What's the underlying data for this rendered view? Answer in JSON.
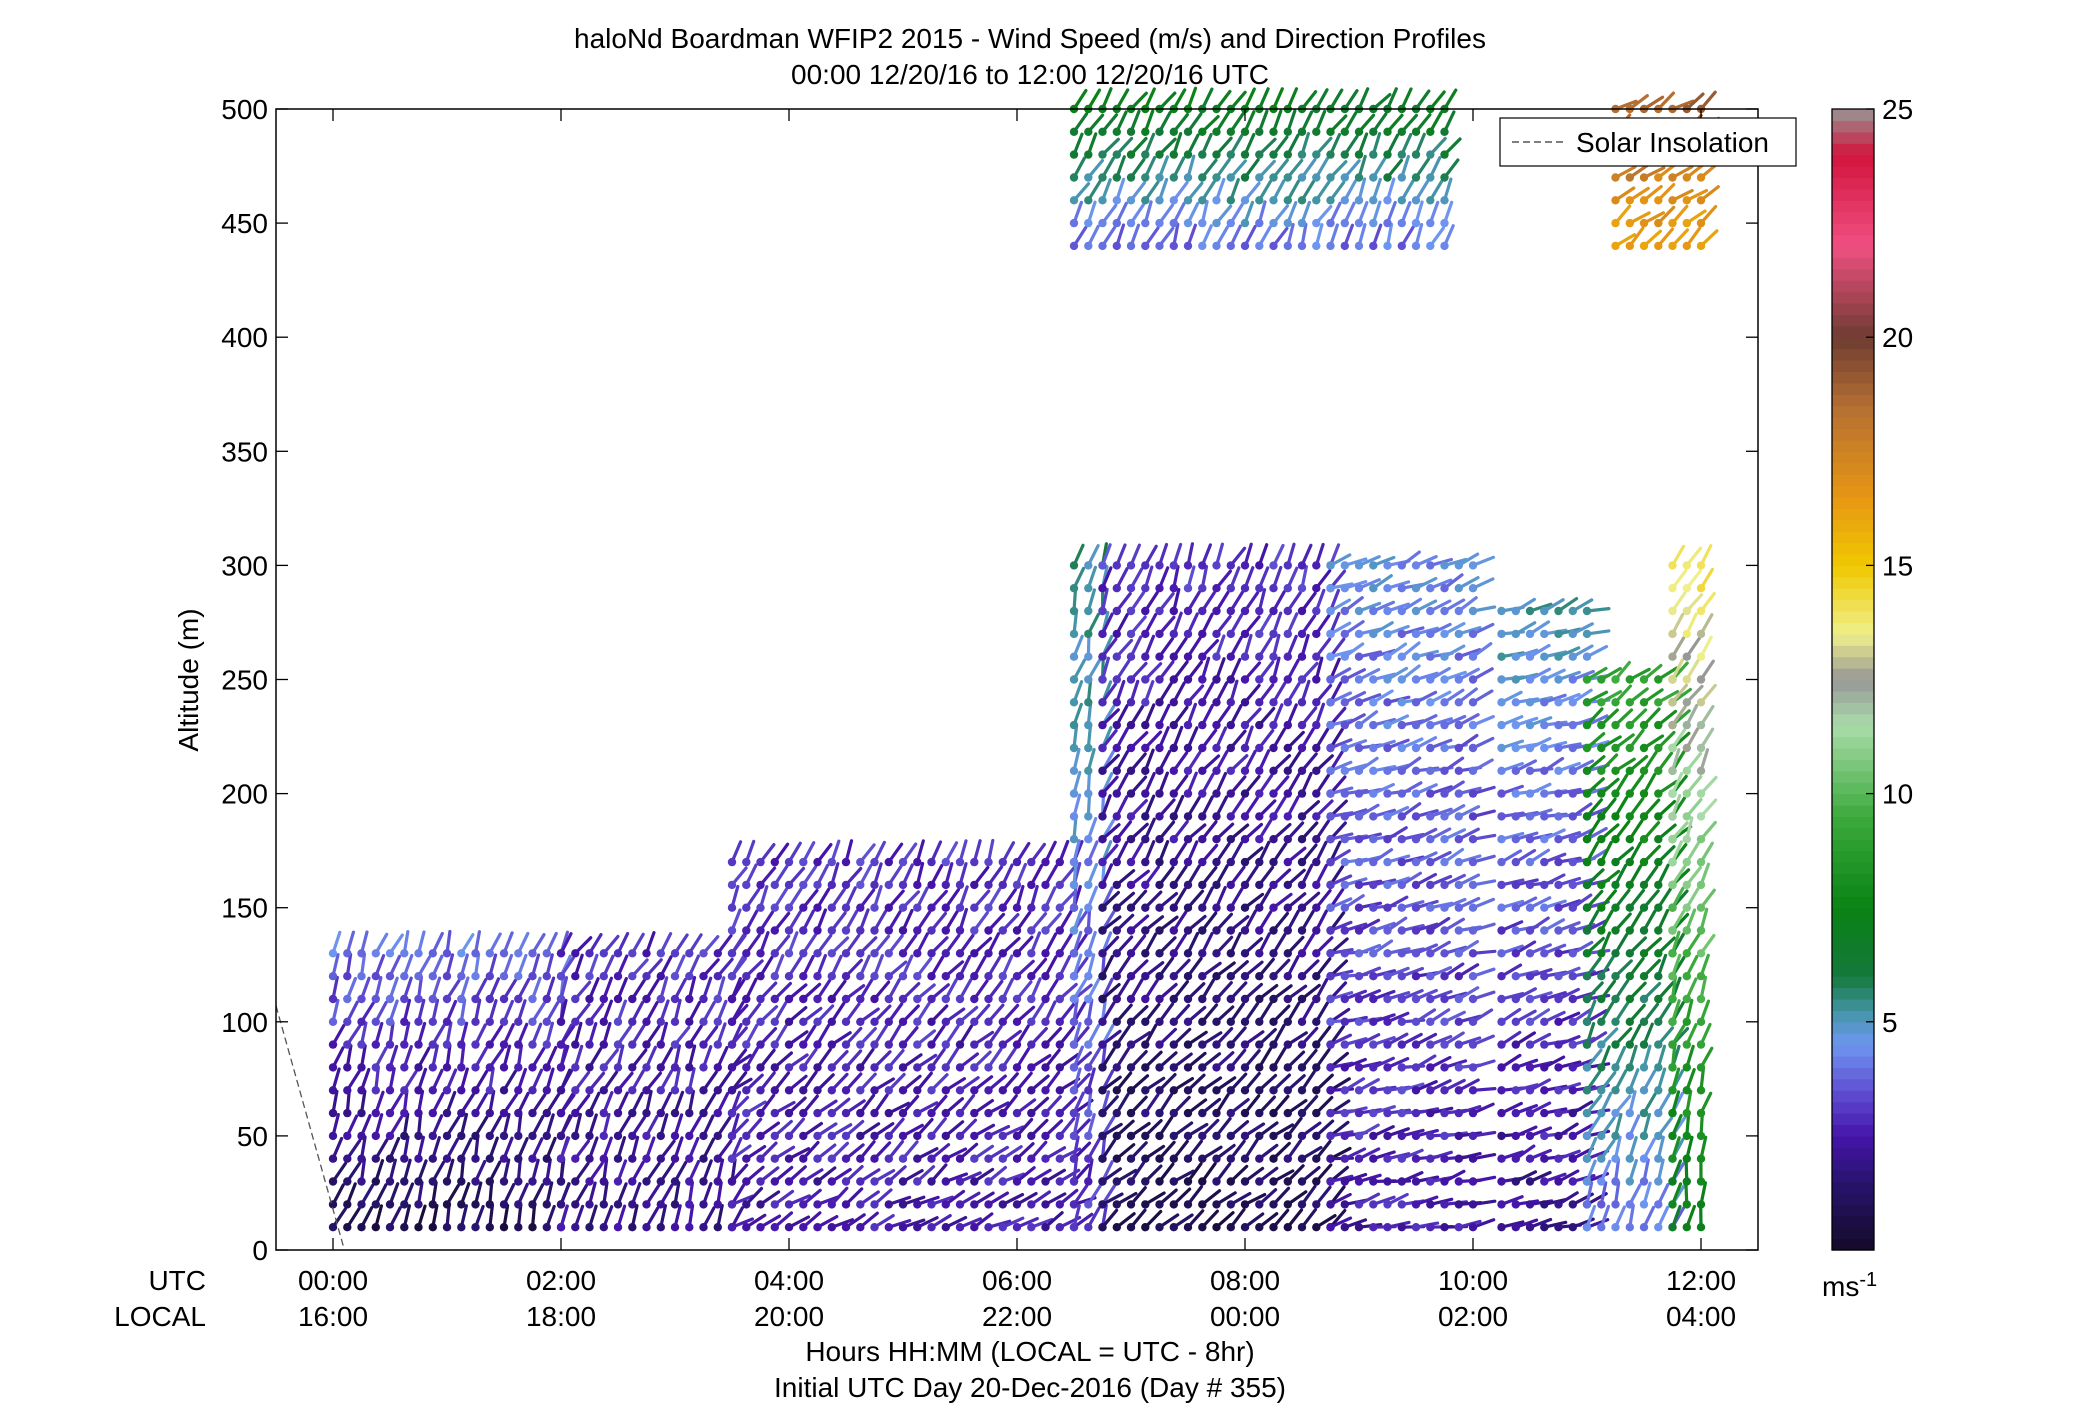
{
  "chart_data": {
    "type": "scatter",
    "title": "haloNd Boardman WFIP2 2015 - Wind Speed (m/s) and Direction Profiles",
    "subtitle": "00:00 12/20/16 to 12:00 12/20/16  UTC",
    "xlabel": "Hours HH:MM  (LOCAL = UTC - 8hr)",
    "xlabel2": "Initial UTC Day 20-Dec-2016 (Day # 355)",
    "ylabel": "Altitude (m)",
    "ylim": [
      0,
      500
    ],
    "xlim": [
      -0.5,
      12.5
    ],
    "yticks": [
      "0",
      "50",
      "100",
      "150",
      "200",
      "250",
      "300",
      "350",
      "400",
      "450",
      "500"
    ],
    "xticks_utc": [
      "00:00",
      "02:00",
      "04:00",
      "06:00",
      "08:00",
      "10:00",
      "12:00"
    ],
    "xticks_local": [
      "16:00",
      "18:00",
      "20:00",
      "22:00",
      "00:00",
      "02:00",
      "04:00"
    ],
    "row_label_utc": "UTC",
    "row_label_local": "LOCAL",
    "legend": [
      "Solar Insolation"
    ],
    "legend_position": "top-right",
    "colorbar": {
      "ticks": [
        "5",
        "10",
        "15",
        "20",
        "25"
      ],
      "range": [
        0,
        25
      ],
      "unit_label": "ms",
      "unit_exp": "-1"
    },
    "solar_insolation": [
      [
        -0.5,
        107
      ],
      [
        0.1,
        0
      ]
    ],
    "segments": [
      {
        "t0": 0.0,
        "t1": 2.0,
        "z0": 10,
        "z1": 130,
        "s0": 1.0,
        "s1": 4.0,
        "d0": 200,
        "d1": 200
      },
      {
        "t0": 2.0,
        "t1": 3.5,
        "z0": 10,
        "z1": 130,
        "s0": 2.0,
        "s1": 3.0,
        "d0": 200,
        "d1": 210
      },
      {
        "t0": 3.5,
        "t1": 6.5,
        "z0": 10,
        "z1": 170,
        "s0": 2.5,
        "s1": 3.0,
        "d0": 240,
        "d1": 205
      },
      {
        "t0": 6.5,
        "t1": 6.75,
        "z0": 10,
        "z1": 300,
        "s0": 3.0,
        "s1": 5.5,
        "d0": 200,
        "d1": 195
      },
      {
        "t0": 6.75,
        "t1": 8.75,
        "z0": 10,
        "z1": 300,
        "s0": 1.0,
        "s1": 3.0,
        "d0": 230,
        "d1": 205
      },
      {
        "t0": 8.75,
        "t1": 10.0,
        "z0": 10,
        "z1": 300,
        "s0": 2.5,
        "s1": 4.5,
        "d0": 255,
        "d1": 245
      },
      {
        "t0": 10.25,
        "t1": 11.0,
        "z0": 10,
        "z1": 280,
        "s0": 2.0,
        "s1": 5.0,
        "d0": 250,
        "d1": 250
      },
      {
        "t0": 11.0,
        "t1": 11.75,
        "z0": 10,
        "z1": 250,
        "s0": 4.0,
        "s1": 9.0,
        "d0": 200,
        "d1": 230
      },
      {
        "t0": 11.75,
        "t1": 12.0,
        "z0": 10,
        "z1": 300,
        "s0": 7.0,
        "s1": 14.0,
        "d0": 190,
        "d1": 220
      },
      {
        "t0": 6.5,
        "t1": 9.75,
        "z0": 440,
        "z1": 500,
        "s0": 4.0,
        "s1": 7.0,
        "d0": 205,
        "d1": 215
      },
      {
        "t0": 11.25,
        "t1": 12.0,
        "z0": 440,
        "z1": 500,
        "s0": 16.0,
        "s1": 19.0,
        "d0": 230,
        "d1": 235
      }
    ]
  }
}
